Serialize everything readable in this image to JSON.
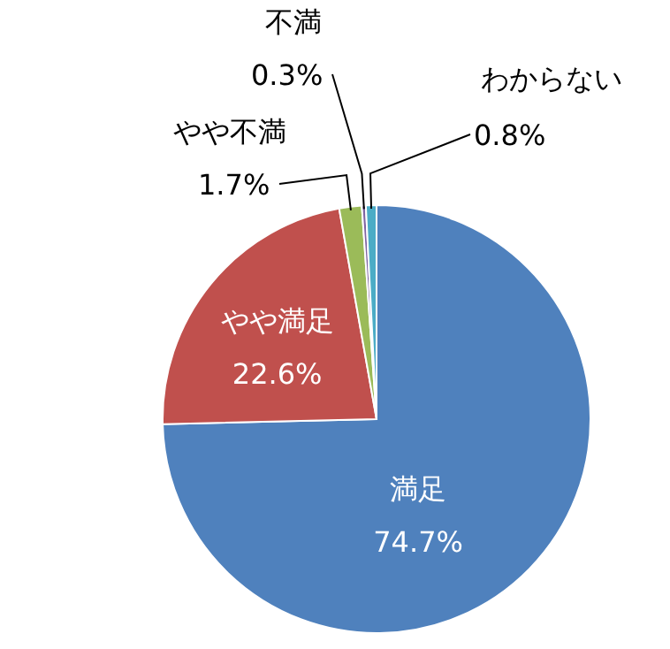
{
  "chart_data": {
    "type": "pie",
    "categories": [
      "満足",
      "やや満足",
      "やや不満",
      "不満",
      "わからない"
    ],
    "values": [
      74.7,
      22.6,
      1.7,
      0.3,
      0.8
    ],
    "colors": [
      "#4f81bd",
      "#c0504d",
      "#9bbb59",
      "#8064a2",
      "#4bacc6"
    ],
    "value_labels": [
      "74.7%",
      "22.6%",
      "1.7%",
      "0.3%",
      "0.8%"
    ]
  }
}
